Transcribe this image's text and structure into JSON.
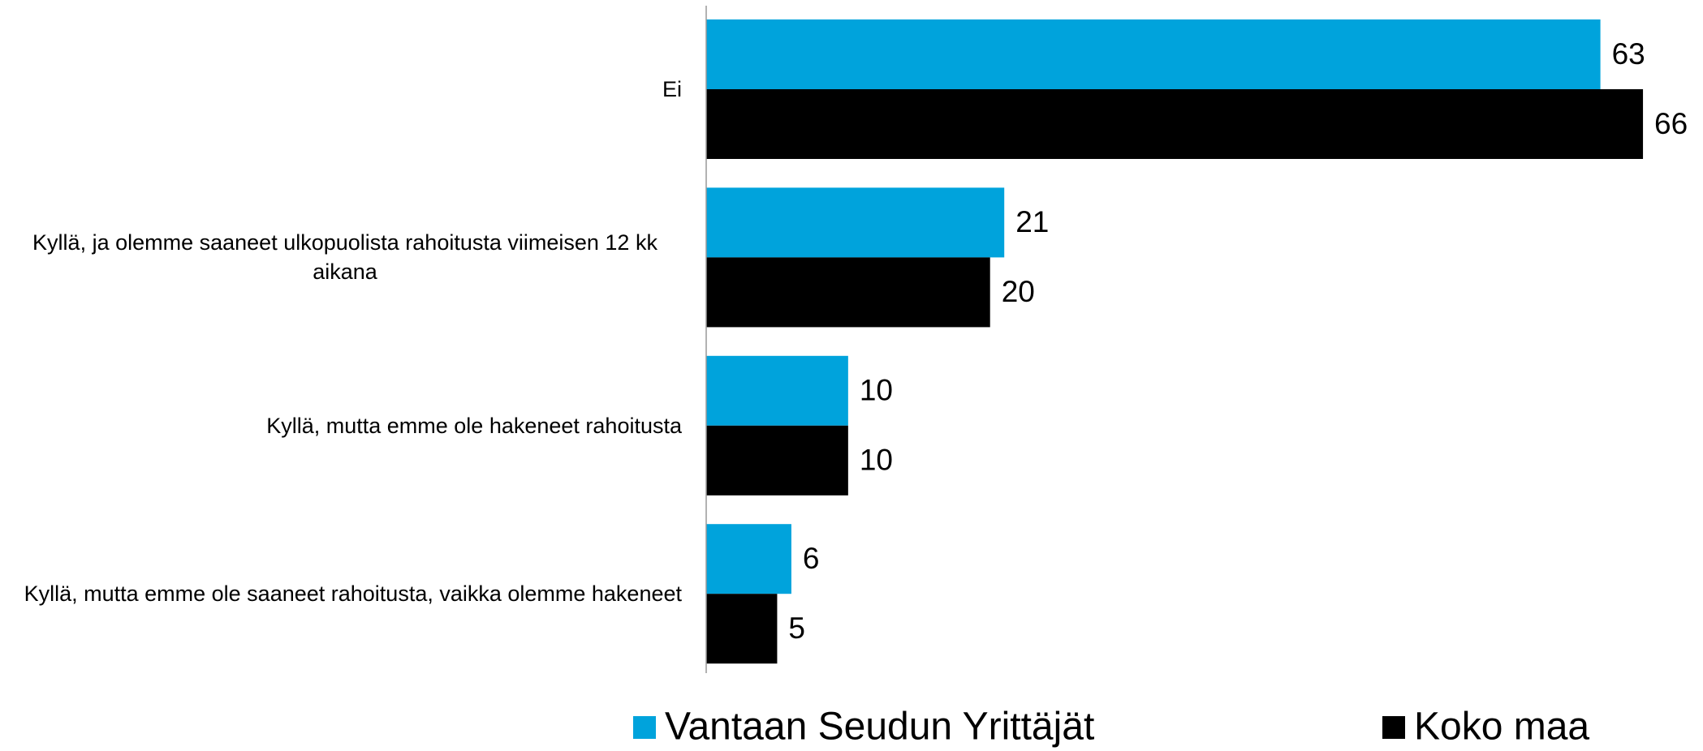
{
  "chart_data": {
    "type": "hbar",
    "categories": [
      "Ei",
      "Kyllä, ja olemme saaneet ulkopuolista rahoitusta viimeisen 12 kk aikana",
      "Kyllä, mutta emme ole hakeneet rahoitusta",
      "Kyllä, mutta emme ole saaneet rahoitusta, vaikka olemme hakeneet"
    ],
    "series": [
      {
        "name": "Vantaan Seudun Yrittäjät",
        "color": "#00a3dc",
        "values": [
          63,
          21,
          10,
          6
        ]
      },
      {
        "name": "Koko maa",
        "color": "#000000",
        "values": [
          66,
          20,
          10,
          5
        ]
      }
    ],
    "xlim": [
      0,
      70
    ]
  }
}
